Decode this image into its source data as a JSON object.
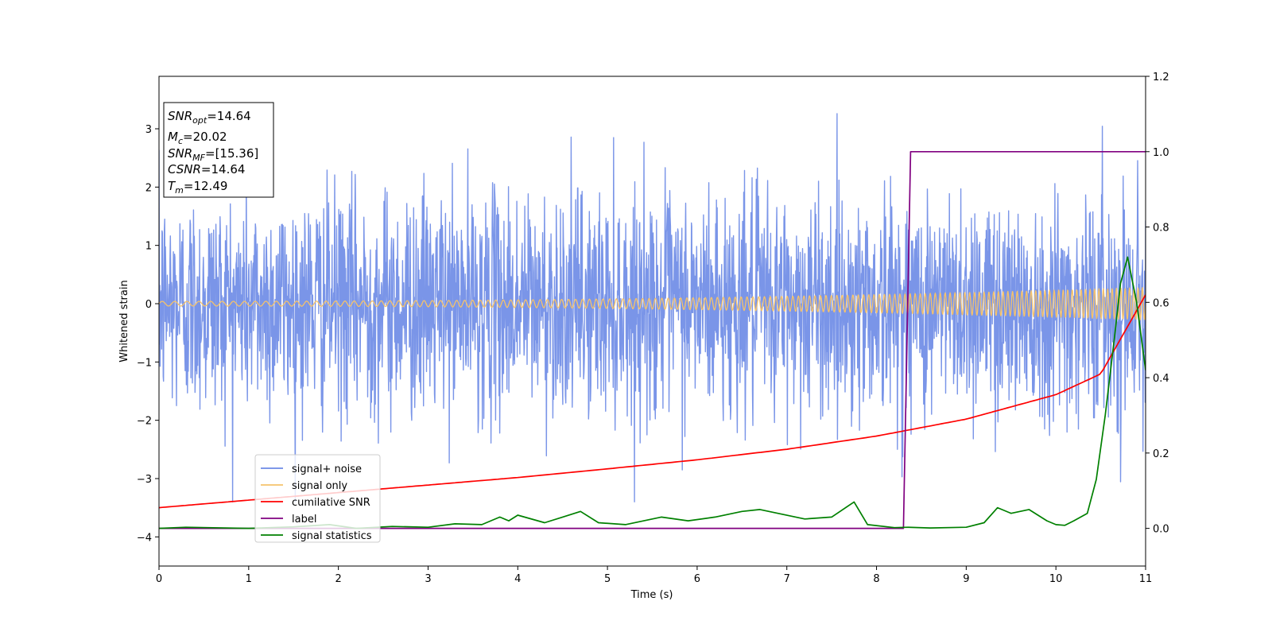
{
  "chart_data": {
    "type": "line",
    "xlabel": "Time (s)",
    "ylabel": "Whitened strain",
    "xlim": [
      0,
      11
    ],
    "ylim": [
      -4.5,
      3.9
    ],
    "y2lim": [
      -0.1,
      1.2
    ],
    "x_ticks": [
      "0",
      "1",
      "2",
      "3",
      "4",
      "5",
      "6",
      "7",
      "8",
      "9",
      "10",
      "11"
    ],
    "y_ticks": [
      "−4",
      "−3",
      "−2",
      "−1",
      "0",
      "1",
      "2",
      "3"
    ],
    "y2_ticks": [
      "0.0",
      "0.2",
      "0.4",
      "0.6",
      "0.8",
      "1.0",
      "1.2"
    ],
    "grid": false,
    "legend_position": "lower-left",
    "annotation": {
      "snr_opt": "=14.64",
      "mc": "=20.02",
      "snr_mf": "=[15.36]",
      "csnr": "=14.64",
      "tm": "=12.49"
    },
    "series": [
      {
        "name": "signal+ noise",
        "color": "#6b8ae6",
        "axis": "left",
        "kind": "noise",
        "envelope": {
          "std": 0.95,
          "max_peak": 3.55,
          "min_peak": -3.4
        }
      },
      {
        "name": "signal only",
        "color": "#f5c26b",
        "axis": "left",
        "kind": "chirp",
        "amplitude_start": 0.04,
        "amplitude_end": 0.28
      },
      {
        "name": "cumilative SNR",
        "color": "#ff0000",
        "axis": "right",
        "x": [
          0,
          1,
          2,
          3,
          4,
          5,
          6,
          7,
          8,
          9,
          10,
          10.5,
          11
        ],
        "y": [
          0.055,
          0.075,
          0.095,
          0.115,
          0.135,
          0.158,
          0.182,
          0.21,
          0.245,
          0.29,
          0.355,
          0.41,
          0.62
        ]
      },
      {
        "name": "label",
        "color": "#800080",
        "axis": "right",
        "x": [
          0,
          8.3,
          8.38,
          11
        ],
        "y": [
          0.0,
          0.0,
          1.0,
          1.0
        ]
      },
      {
        "name": "signal statistics",
        "color": "#008000",
        "axis": "right",
        "x": [
          0,
          0.3,
          1,
          1.5,
          1.9,
          2.2,
          2.6,
          3,
          3.3,
          3.6,
          3.8,
          3.9,
          4.0,
          4.3,
          4.5,
          4.7,
          4.9,
          5.2,
          5.6,
          5.9,
          6.2,
          6.5,
          6.7,
          6.9,
          7.2,
          7.5,
          7.75,
          7.9,
          8.2,
          8.35,
          8.6,
          9.0,
          9.2,
          9.35,
          9.5,
          9.7,
          9.9,
          10.0,
          10.1,
          10.2,
          10.35,
          10.45,
          10.55,
          10.65,
          10.72,
          10.8,
          10.9,
          11.0
        ],
        "y": [
          0.0,
          0.003,
          0.0,
          0.004,
          0.01,
          0.0,
          0.005,
          0.003,
          0.012,
          0.01,
          0.03,
          0.02,
          0.035,
          0.015,
          0.03,
          0.045,
          0.015,
          0.01,
          0.03,
          0.02,
          0.03,
          0.045,
          0.05,
          0.04,
          0.025,
          0.03,
          0.07,
          0.01,
          0.002,
          0.003,
          0.001,
          0.003,
          0.015,
          0.055,
          0.04,
          0.05,
          0.02,
          0.01,
          0.008,
          0.02,
          0.04,
          0.13,
          0.3,
          0.5,
          0.65,
          0.72,
          0.6,
          0.42
        ]
      }
    ]
  }
}
